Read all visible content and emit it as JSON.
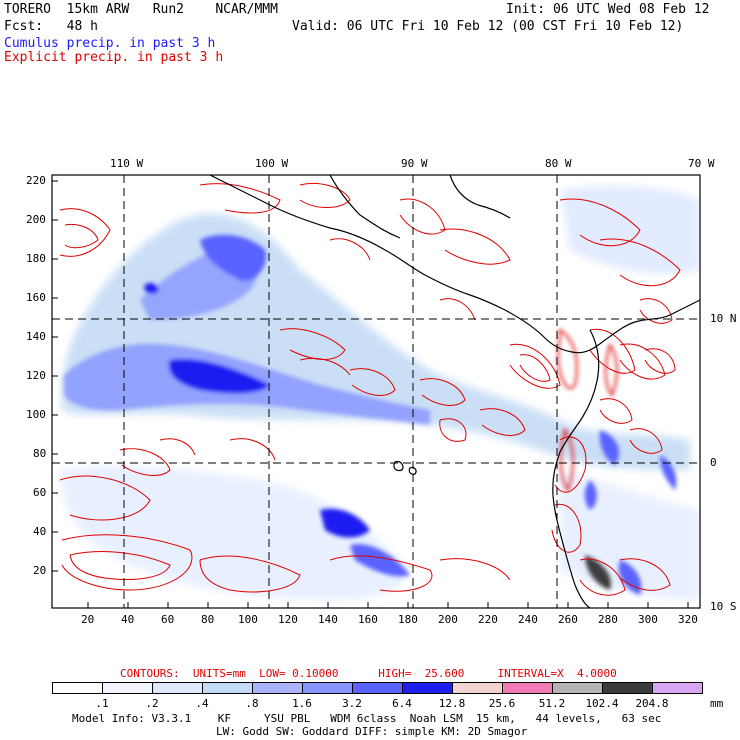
{
  "header": {
    "line1_left": "TORERO  15km ARW   Run2    NCAR/MMM",
    "line1_right": "Init: 06 UTC Wed 08 Feb 12",
    "line2_left": "Fcst:   48 h",
    "line2_right": "Valid: 06 UTC Fri 10 Feb 12 (00 CST Fri 10 Feb 12)",
    "legend_cumulus": "Cumulus precip. in past 3 h",
    "legend_explicit": "Explicit precip. in past 3 h"
  },
  "map": {
    "lon_labels": [
      "110 W",
      "100 W",
      "90 W",
      "80 W",
      "70 W"
    ],
    "lat_labels": [
      "10 N",
      "0",
      "10 S"
    ],
    "y_ticks": [
      "220",
      "200",
      "180",
      "160",
      "140",
      "120",
      "100",
      "80",
      "60",
      "40",
      "20"
    ],
    "x_ticks": [
      "20",
      "40",
      "60",
      "80",
      "100",
      "120",
      "140",
      "160",
      "180",
      "200",
      "220",
      "240",
      "260",
      "280",
      "300",
      "320"
    ],
    "colors": {
      "cumulus": "#2b2bff",
      "explicit": "#e00000",
      "coast": "#000000",
      "grid": "#000000"
    }
  },
  "contours_info": "CONTOURS:  UNITS=mm  LOW= 0.10000      HIGH=  25.600     INTERVAL=X  4.0000",
  "colorbar": {
    "labels": [
      ".1",
      ".2",
      ".4",
      ".8",
      "1.6",
      "3.2",
      "6.4",
      "12.8",
      "25.6",
      "51.2",
      "102.4",
      "204.8"
    ],
    "units": "mm",
    "colors": [
      "#ffffff",
      "#f4f6ff",
      "#dfe9ff",
      "#c5dcf5",
      "#aab4ff",
      "#8896ff",
      "#5a62ff",
      "#1e1ef0",
      "#f3d2d2",
      "#f07ab4",
      "#b4b4b4",
      "#3c3c3c",
      "#d6a6f2"
    ]
  },
  "footer": {
    "line1": "Model Info: V3.3.1    KF     YSU PBL   WDM 6class  Noah LSM  15 km,   44 levels,   63 sec",
    "line2": "LW: Godd SW: Goddard DIFF: simple KM: 2D Smagor"
  }
}
